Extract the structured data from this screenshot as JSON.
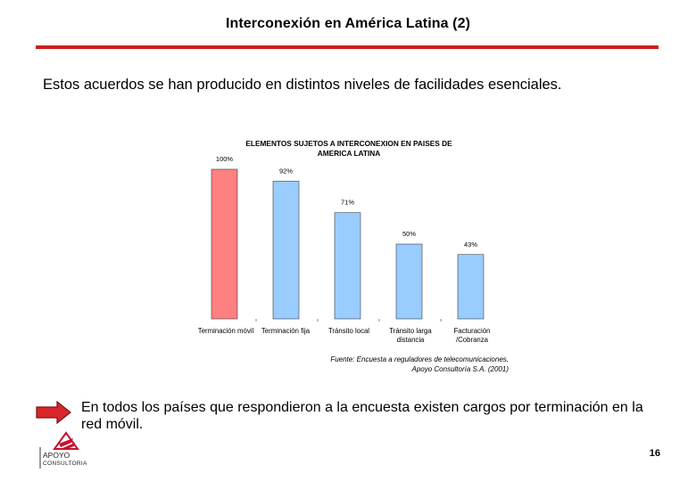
{
  "slide": {
    "title": "Interconexión en América Latina (2)",
    "subtitle": "Estos acuerdos se han producido en distintos niveles de facilidades esenciales.",
    "note": "En todos los países que respondieron a la encuesta existen cargos por terminación en la red móvil.",
    "page_number": "16",
    "accent_color": "#cc1f1f"
  },
  "chart_data": {
    "type": "bar",
    "title_lines": [
      "ELEMENTOS SUJETOS A INTERCONEXION EN PAISES DE",
      "AMERICA LATINA"
    ],
    "categories": [
      [
        "Terminación móvil"
      ],
      [
        "Terminación fija"
      ],
      [
        "Tránsito local"
      ],
      [
        "Tránsito larga",
        "distancia"
      ],
      [
        "Facturación",
        "/Cobranza"
      ]
    ],
    "values": [
      100,
      92,
      71,
      50,
      43
    ],
    "value_labels": [
      "100%",
      "92%",
      "71%",
      "50%",
      "43%"
    ],
    "unit": "%",
    "colors": [
      "#ff8080",
      "#99ccff",
      "#99ccff",
      "#99ccff",
      "#99ccff"
    ],
    "ylim": [
      0,
      100
    ],
    "xlabel": "",
    "ylabel": "",
    "grid": false,
    "source_lines": [
      "Fuente: Encuesta a reguladores de telecomunicaciones,",
      "Apoyo Consultoría S.A. (2001)"
    ]
  },
  "logo": {
    "line1": "APOYO",
    "line2": "CONSULTORIA"
  },
  "icons": {
    "arrow": "right-arrow-icon",
    "logo": "apoyo-logo-icon"
  }
}
